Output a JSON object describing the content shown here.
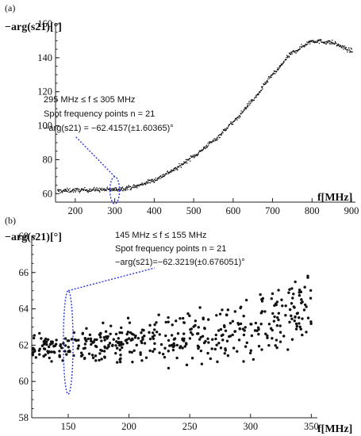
{
  "chart_data": [
    {
      "panel_label": "(a)",
      "type": "scatter",
      "ylabel": "−arg(s21)[°]",
      "xlabel": "f[MHz]",
      "xlim": [
        150,
        910
      ],
      "ylim": [
        55,
        160
      ],
      "xticks": [
        "200",
        "300",
        "400",
        "500",
        "600",
        "700",
        "800",
        "900"
      ],
      "yticks": [
        "60",
        "80",
        "100",
        "120",
        "140",
        "160"
      ],
      "curve_points": [
        [
          150,
          61.5
        ],
        [
          200,
          62
        ],
        [
          250,
          62.3
        ],
        [
          300,
          62.4
        ],
        [
          350,
          64
        ],
        [
          400,
          68
        ],
        [
          450,
          74
        ],
        [
          500,
          82
        ],
        [
          550,
          91
        ],
        [
          600,
          102
        ],
        [
          650,
          115
        ],
        [
          700,
          130
        ],
        [
          750,
          143
        ],
        [
          800,
          150
        ],
        [
          850,
          149
        ],
        [
          900,
          144
        ]
      ],
      "point_count": 700,
      "noise": 1.6,
      "annotation": {
        "line1": "295 MHz ≤ f ≤ 305 MHz",
        "line2": "Spot frequency points n = 21",
        "line3": "−arg(s21) = −62.4157(±1.60365)°"
      },
      "highlight": {
        "x_center": 300,
        "x_halfwidth": 12,
        "y_low": 54,
        "y_high": 70
      }
    },
    {
      "panel_label": "(b)",
      "type": "scatter",
      "ylabel": "−arg(s21)[°]",
      "xlabel": "f[MHz]",
      "xlim": [
        120,
        355
      ],
      "ylim": [
        58,
        68
      ],
      "xticks": [
        "150",
        "200",
        "250",
        "300",
        "350"
      ],
      "yticks": [
        "58",
        "60",
        "62",
        "64",
        "66",
        "68"
      ],
      "trend": [
        [
          120,
          61.8
        ],
        [
          200,
          62.2
        ],
        [
          250,
          62.4
        ],
        [
          300,
          63.0
        ],
        [
          350,
          64.2
        ]
      ],
      "point_count": 450,
      "annotation": {
        "line1": "145 MHz ≤ f ≤ 155 MHz",
        "line2": "Spot frequency points n = 21",
        "line3": "−arg(s21)=−62.3219(±0.676051)°"
      },
      "highlight": {
        "x_center": 150,
        "x_halfwidth": 4,
        "y_low": 59.3,
        "y_high": 65.0
      }
    }
  ]
}
